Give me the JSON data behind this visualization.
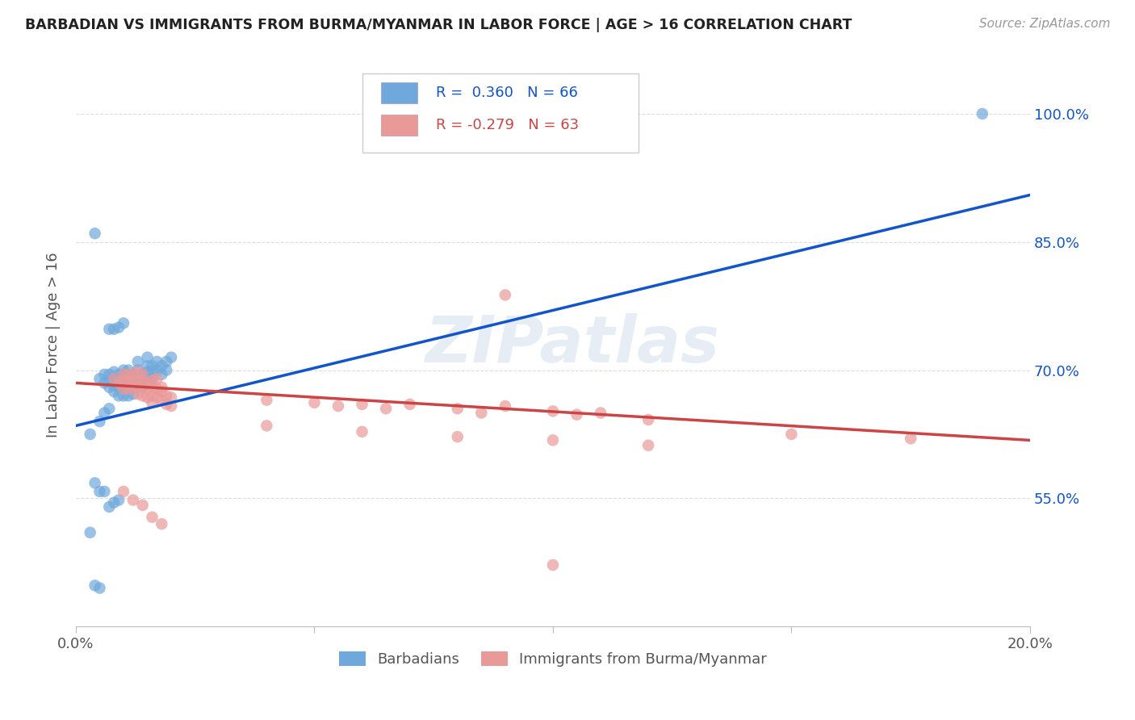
{
  "title": "BARBADIAN VS IMMIGRANTS FROM BURMA/MYANMAR IN LABOR FORCE | AGE > 16 CORRELATION CHART",
  "source": "Source: ZipAtlas.com",
  "ylabel": "In Labor Force | Age > 16",
  "xlim": [
    0.0,
    0.2
  ],
  "ylim": [
    0.4,
    1.06
  ],
  "yticks": [
    0.55,
    0.7,
    0.85,
    1.0
  ],
  "ytick_labels": [
    "55.0%",
    "70.0%",
    "85.0%",
    "100.0%"
  ],
  "xticks": [
    0.0,
    0.05,
    0.1,
    0.15,
    0.2
  ],
  "xtick_labels": [
    "0.0%",
    "",
    "",
    "",
    "20.0%"
  ],
  "barbadian_R": 0.36,
  "barbadian_N": 66,
  "burma_R": -0.279,
  "burma_N": 63,
  "blue_color": "#6fa8dc",
  "pink_color": "#ea9999",
  "blue_line_color": "#1155cc",
  "pink_line_color": "#cc4444",
  "legend_label_blue": "Barbadians",
  "legend_label_pink": "Immigrants from Burma/Myanmar",
  "watermark": "ZIPatlas",
  "blue_line": [
    0.0,
    0.635,
    0.2,
    0.905
  ],
  "pink_line": [
    0.0,
    0.685,
    0.2,
    0.618
  ],
  "barbadian_points": [
    [
      0.005,
      0.69
    ],
    [
      0.006,
      0.685
    ],
    [
      0.006,
      0.695
    ],
    [
      0.007,
      0.688
    ],
    [
      0.007,
      0.68
    ],
    [
      0.007,
      0.695
    ],
    [
      0.008,
      0.69
    ],
    [
      0.008,
      0.682
    ],
    [
      0.008,
      0.698
    ],
    [
      0.008,
      0.675
    ],
    [
      0.009,
      0.688
    ],
    [
      0.009,
      0.695
    ],
    [
      0.009,
      0.68
    ],
    [
      0.009,
      0.67
    ],
    [
      0.01,
      0.685
    ],
    [
      0.01,
      0.678
    ],
    [
      0.01,
      0.695
    ],
    [
      0.01,
      0.7
    ],
    [
      0.01,
      0.67
    ],
    [
      0.011,
      0.69
    ],
    [
      0.011,
      0.68
    ],
    [
      0.011,
      0.67
    ],
    [
      0.011,
      0.7
    ],
    [
      0.012,
      0.688
    ],
    [
      0.012,
      0.695
    ],
    [
      0.012,
      0.68
    ],
    [
      0.012,
      0.672
    ],
    [
      0.013,
      0.7
    ],
    [
      0.013,
      0.69
    ],
    [
      0.013,
      0.68
    ],
    [
      0.013,
      0.71
    ],
    [
      0.014,
      0.695
    ],
    [
      0.014,
      0.688
    ],
    [
      0.014,
      0.68
    ],
    [
      0.015,
      0.698
    ],
    [
      0.015,
      0.69
    ],
    [
      0.015,
      0.715
    ],
    [
      0.015,
      0.705
    ],
    [
      0.016,
      0.698
    ],
    [
      0.016,
      0.69
    ],
    [
      0.016,
      0.705
    ],
    [
      0.017,
      0.7
    ],
    [
      0.017,
      0.71
    ],
    [
      0.018,
      0.705
    ],
    [
      0.018,
      0.695
    ],
    [
      0.019,
      0.71
    ],
    [
      0.019,
      0.7
    ],
    [
      0.02,
      0.715
    ],
    [
      0.004,
      0.86
    ],
    [
      0.003,
      0.625
    ],
    [
      0.005,
      0.64
    ],
    [
      0.006,
      0.65
    ],
    [
      0.007,
      0.655
    ],
    [
      0.007,
      0.748
    ],
    [
      0.008,
      0.748
    ],
    [
      0.009,
      0.75
    ],
    [
      0.01,
      0.755
    ],
    [
      0.004,
      0.568
    ],
    [
      0.005,
      0.558
    ],
    [
      0.006,
      0.558
    ],
    [
      0.007,
      0.54
    ],
    [
      0.008,
      0.545
    ],
    [
      0.009,
      0.548
    ],
    [
      0.003,
      0.51
    ],
    [
      0.004,
      0.448
    ],
    [
      0.005,
      0.445
    ],
    [
      0.19,
      1.0
    ]
  ],
  "burma_points": [
    [
      0.008,
      0.69
    ],
    [
      0.009,
      0.685
    ],
    [
      0.01,
      0.688
    ],
    [
      0.01,
      0.678
    ],
    [
      0.01,
      0.695
    ],
    [
      0.011,
      0.685
    ],
    [
      0.011,
      0.678
    ],
    [
      0.011,
      0.695
    ],
    [
      0.012,
      0.688
    ],
    [
      0.012,
      0.68
    ],
    [
      0.012,
      0.695
    ],
    [
      0.013,
      0.68
    ],
    [
      0.013,
      0.688
    ],
    [
      0.013,
      0.672
    ],
    [
      0.013,
      0.698
    ],
    [
      0.014,
      0.688
    ],
    [
      0.014,
      0.68
    ],
    [
      0.014,
      0.67
    ],
    [
      0.014,
      0.695
    ],
    [
      0.015,
      0.685
    ],
    [
      0.015,
      0.678
    ],
    [
      0.015,
      0.668
    ],
    [
      0.016,
      0.68
    ],
    [
      0.016,
      0.67
    ],
    [
      0.016,
      0.688
    ],
    [
      0.016,
      0.662
    ],
    [
      0.017,
      0.678
    ],
    [
      0.017,
      0.668
    ],
    [
      0.017,
      0.69
    ],
    [
      0.018,
      0.675
    ],
    [
      0.018,
      0.665
    ],
    [
      0.018,
      0.68
    ],
    [
      0.019,
      0.67
    ],
    [
      0.019,
      0.66
    ],
    [
      0.02,
      0.668
    ],
    [
      0.02,
      0.658
    ],
    [
      0.04,
      0.665
    ],
    [
      0.05,
      0.662
    ],
    [
      0.055,
      0.658
    ],
    [
      0.06,
      0.66
    ],
    [
      0.065,
      0.655
    ],
    [
      0.07,
      0.66
    ],
    [
      0.08,
      0.655
    ],
    [
      0.085,
      0.65
    ],
    [
      0.09,
      0.658
    ],
    [
      0.1,
      0.652
    ],
    [
      0.105,
      0.648
    ],
    [
      0.11,
      0.65
    ],
    [
      0.12,
      0.642
    ],
    [
      0.09,
      0.788
    ],
    [
      0.01,
      0.558
    ],
    [
      0.012,
      0.548
    ],
    [
      0.014,
      0.542
    ],
    [
      0.016,
      0.528
    ],
    [
      0.018,
      0.52
    ],
    [
      0.04,
      0.635
    ],
    [
      0.06,
      0.628
    ],
    [
      0.08,
      0.622
    ],
    [
      0.1,
      0.618
    ],
    [
      0.12,
      0.612
    ],
    [
      0.15,
      0.625
    ],
    [
      0.175,
      0.62
    ],
    [
      0.1,
      0.472
    ]
  ]
}
